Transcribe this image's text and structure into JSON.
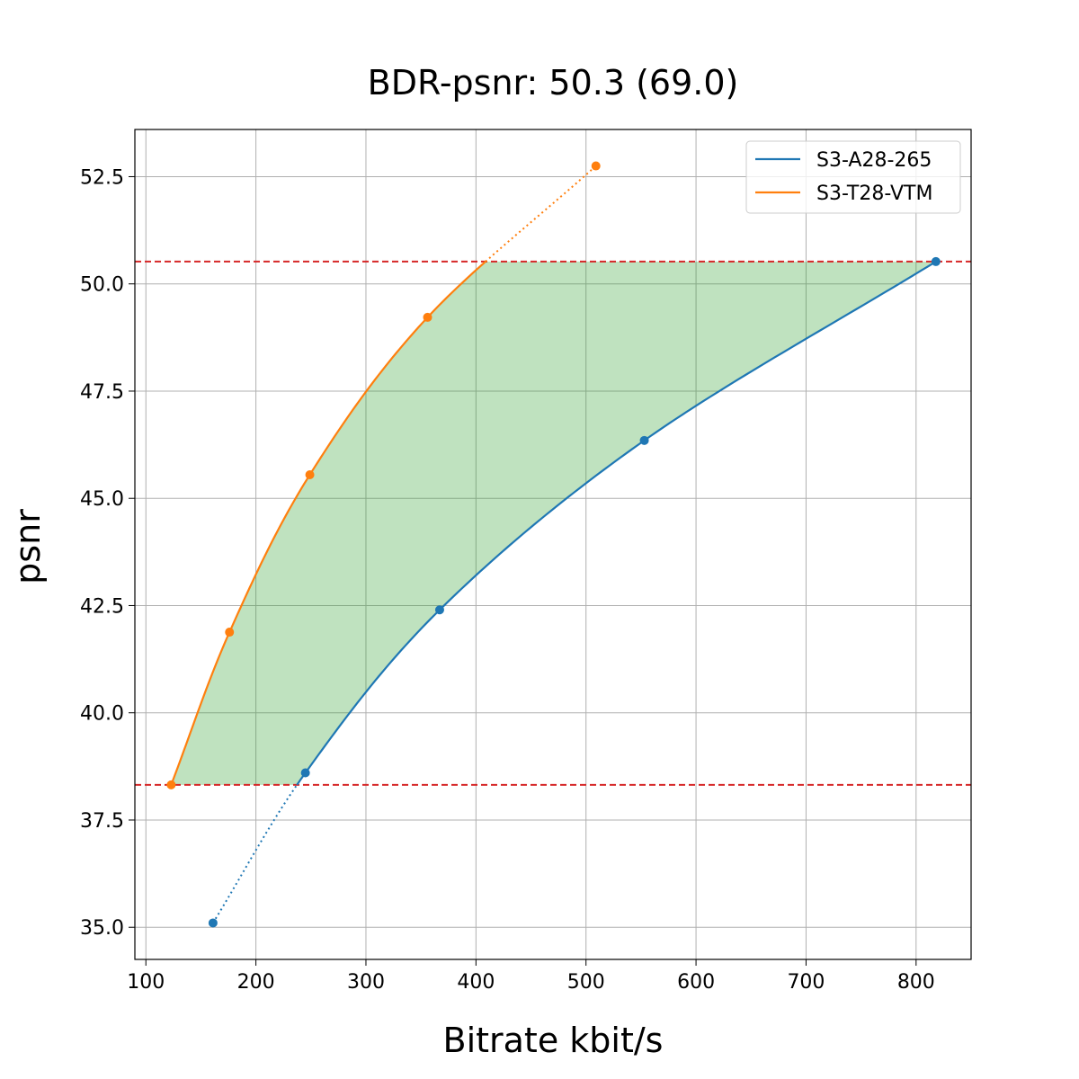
{
  "chart_data": {
    "type": "line",
    "title": "BDR-psnr: 50.3 (69.0)",
    "xlabel": "Bitrate kbit/s",
    "ylabel": "psnr",
    "xlim": [
      90,
      850
    ],
    "ylim": [
      34.25,
      53.6
    ],
    "xticks": [
      100,
      200,
      300,
      400,
      500,
      600,
      700,
      800
    ],
    "xtick_labels": [
      "100",
      "200",
      "300",
      "400",
      "500",
      "600",
      "700",
      "800"
    ],
    "yticks": [
      35.0,
      37.5,
      40.0,
      42.5,
      45.0,
      47.5,
      50.0,
      52.5
    ],
    "ytick_labels": [
      "35.0",
      "37.5",
      "40.0",
      "42.5",
      "45.0",
      "47.5",
      "50.0",
      "52.5"
    ],
    "grid": true,
    "legend_position": "top-right",
    "series": [
      {
        "name": "S3-A28-265",
        "color": "#1f77b4",
        "points": [
          [
            161,
            35.1
          ],
          [
            245,
            38.6
          ],
          [
            367,
            42.4
          ],
          [
            553,
            46.35
          ],
          [
            818,
            50.52
          ]
        ],
        "interval": [
          38.32,
          50.52
        ]
      },
      {
        "name": "S3-T28-VTM",
        "color": "#ff7f0e",
        "points": [
          [
            123,
            38.32
          ],
          [
            176,
            41.88
          ],
          [
            249,
            45.55
          ],
          [
            356,
            49.22
          ],
          [
            509,
            52.75
          ]
        ],
        "interval": [
          38.32,
          50.52
        ]
      }
    ],
    "reference_lines": {
      "y_values": [
        38.32,
        50.52
      ],
      "color": "#d62728",
      "style": "dashed"
    },
    "fill": {
      "color": "#2ca02c",
      "opacity": 0.3,
      "between": [
        38.32,
        50.52
      ]
    }
  }
}
